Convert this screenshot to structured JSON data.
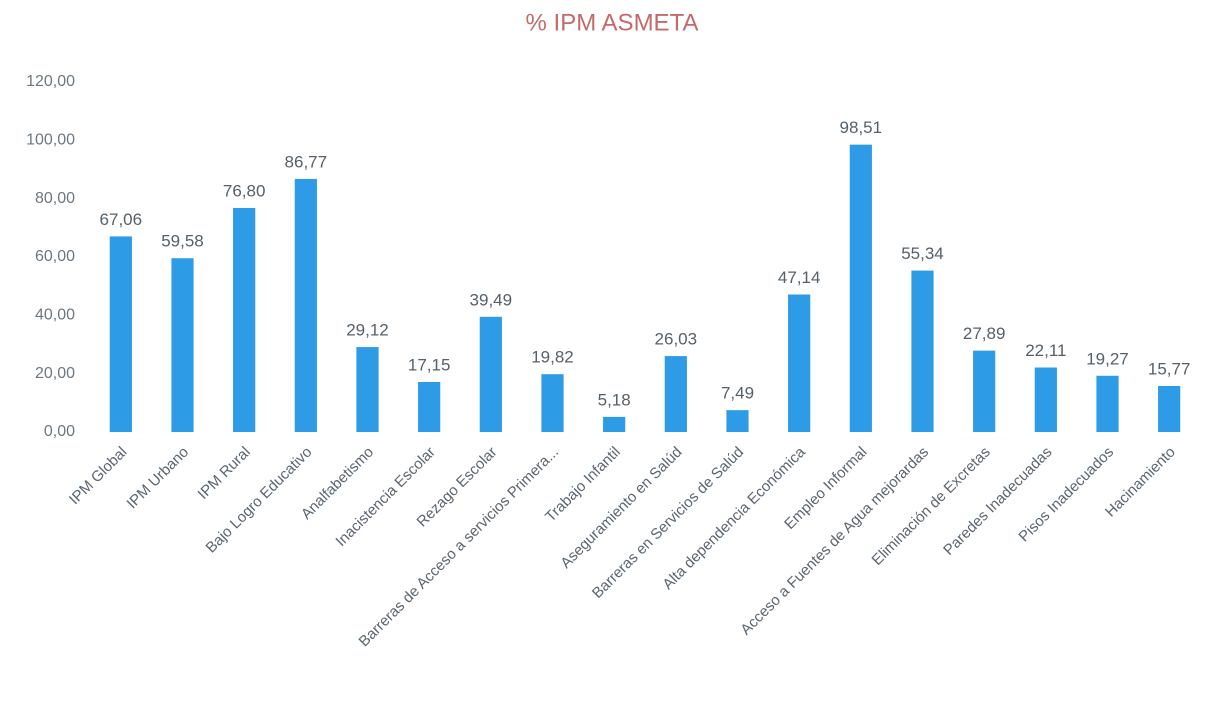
{
  "chart_data": {
    "type": "bar",
    "title": "% IPM ASMETA",
    "categories": [
      "IPM Global",
      "IPM Urbano",
      "IPM Rural",
      "Bajo Logro Educativo",
      "Analfabetismo",
      "Inacistencia Escolar",
      "Rezago Escolar",
      "Barreras de Acceso a servicios Primera...",
      "Trabajo Infantil",
      "Aseguramiento en Salúd",
      "Barreras en Servicios de Salúd",
      "Alta dependencia Económica",
      "Empleo Informal",
      "Acceso a Fuentes de Agua mejorardas",
      "Eliminación de Excretas",
      "Paredes Inadecuadas",
      "Pisos Inadecuados",
      "Hacinamiento"
    ],
    "values": [
      67.06,
      59.58,
      76.8,
      86.77,
      29.12,
      17.15,
      39.49,
      19.82,
      5.18,
      26.03,
      7.49,
      47.14,
      98.51,
      55.34,
      27.89,
      22.11,
      19.27,
      15.77
    ],
    "value_labels": [
      "67,06",
      "59,58",
      "76,80",
      "86,77",
      "29,12",
      "17,15",
      "39,49",
      "19,82",
      "5,18",
      "26,03",
      "7,49",
      "47,14",
      "98,51",
      "55,34",
      "27,89",
      "22,11",
      "19,27",
      "15,77"
    ],
    "color": "#2e9be6",
    "ylim": [
      0,
      120
    ],
    "yticks": [
      {
        "value": 0,
        "label": "0,00"
      },
      {
        "value": 20,
        "label": "20,00"
      },
      {
        "value": 40,
        "label": "40,00"
      },
      {
        "value": 60,
        "label": "60,00"
      },
      {
        "value": 80,
        "label": "80,00"
      },
      {
        "value": 100,
        "label": "100,00"
      },
      {
        "value": 120,
        "label": "120,00"
      }
    ],
    "grid": false
  }
}
